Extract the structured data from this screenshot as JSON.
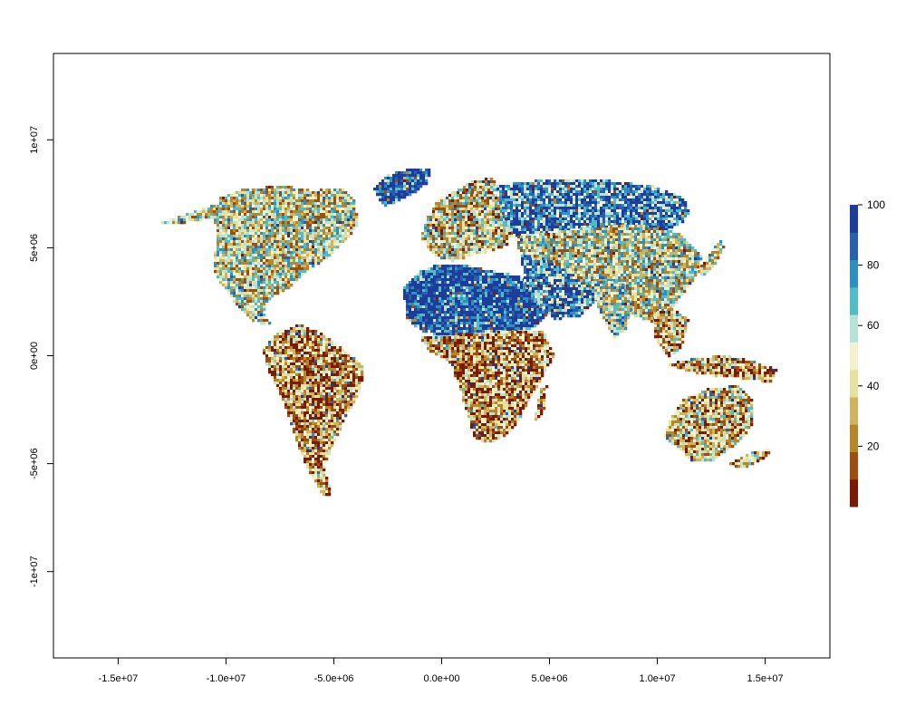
{
  "map": {
    "x_axis": {
      "range": [
        -18000000,
        18000000
      ],
      "ticks": [
        {
          "value": -15000000,
          "label": "-1.5e+07"
        },
        {
          "value": -10000000,
          "label": "-1.0e+07"
        },
        {
          "value": -5000000,
          "label": "-5.0e+06"
        },
        {
          "value": 0,
          "label": "0.0e+00"
        },
        {
          "value": 5000000,
          "label": "5.0e+06"
        },
        {
          "value": 10000000,
          "label": "1.0e+07"
        },
        {
          "value": 15000000,
          "label": "1.5e+07"
        }
      ]
    },
    "y_axis": {
      "range": [
        -14000000,
        14000000
      ],
      "ticks": [
        {
          "value": 10000000,
          "label": "1e+07"
        },
        {
          "value": 5000000,
          "label": "5e+06"
        },
        {
          "value": 0,
          "label": "0e+00"
        },
        {
          "value": -5000000,
          "label": "-5e+06"
        },
        {
          "value": -10000000,
          "label": "-1e+07"
        }
      ]
    },
    "regions": [
      {
        "name": "north-america",
        "dominant": 45
      },
      {
        "name": "greenland",
        "dominant": 95
      },
      {
        "name": "south-america",
        "dominant": 25
      },
      {
        "name": "europe",
        "dominant": 40
      },
      {
        "name": "sahara",
        "dominant": 95
      },
      {
        "name": "sub-saharan-africa",
        "dominant": 25
      },
      {
        "name": "arabia",
        "dominant": 75
      },
      {
        "name": "russia",
        "dominant": 82
      },
      {
        "name": "asia",
        "dominant": 45
      },
      {
        "name": "india",
        "dominant": 55
      },
      {
        "name": "southeast-asia",
        "dominant": 30
      },
      {
        "name": "australia",
        "dominant": 35
      }
    ]
  },
  "legend": {
    "range": [
      0,
      100
    ],
    "colors": [
      "#7a1a05",
      "#9c4e10",
      "#b8862a",
      "#cfb460",
      "#e8e2a0",
      "#f2f2d0",
      "#b8e2d6",
      "#52bcc6",
      "#2f8fbf",
      "#2a5fb0",
      "#1e3c9a"
    ],
    "ticks": [
      {
        "value": 20,
        "label": "20"
      },
      {
        "value": 40,
        "label": "40"
      },
      {
        "value": 60,
        "label": "60"
      },
      {
        "value": 80,
        "label": "80"
      },
      {
        "value": 100,
        "label": "100"
      }
    ]
  }
}
